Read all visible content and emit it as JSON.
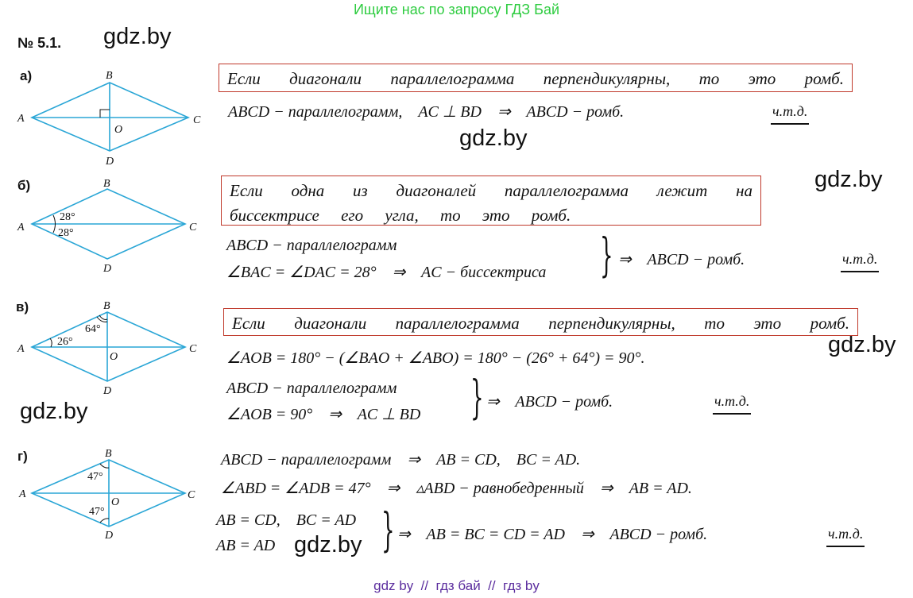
{
  "header": {
    "promo": "Ищите нас по запросу ГДЗ Бай",
    "problem_number": "№ 5.1."
  },
  "watermarks": [
    "gdz.by",
    "gdz.by",
    "gdz.by",
    "gdz.by",
    "gdz.by",
    "gdz.by"
  ],
  "footer": "gdz by  //  гдз бай  //  гдз by",
  "colors": {
    "diagram": "#2aa6d6",
    "box_border": "#c0392b",
    "promo": "#2ecc40",
    "footer": "#5b2d9e"
  },
  "vertices": {
    "A": "A",
    "B": "B",
    "C": "C",
    "D": "D",
    "O": "O"
  },
  "qed": "ч.т.д.",
  "parts": [
    {
      "label": "а)",
      "statement": [
        "Если диагонали параллелограмма перпендикулярны, то это ромб."
      ],
      "lines": [
        "ABCD − параллелограмм,    AC ⊥ BD    ⇒    ABCD − ромб."
      ]
    },
    {
      "label": "б)",
      "angles": [
        "28°",
        "28°"
      ],
      "statement": [
        "Если одна из диагоналей параллелограмма лежит на",
        "биссектрисе его угла, то это ромб."
      ],
      "lines": [
        "ABCD − параллелограмм",
        "∠BAC = ∠DAC = 28°    ⇒    AC − биссектриса"
      ],
      "conclusion": "⇒    ABCD − ромб."
    },
    {
      "label": "в)",
      "angles": [
        "64°",
        "26°"
      ],
      "statement": [
        "Если диагонали параллелограмма перпендикулярны, то это ромб."
      ],
      "lines": [
        "∠AOB = 180° − (∠BAO + ∠ABO) = 180° − (26° + 64°) = 90°.",
        "ABCD − параллелограмм",
        "∠AOB = 90°    ⇒    AC ⊥ BD"
      ],
      "conclusion": "⇒    ABCD − ромб."
    },
    {
      "label": "г)",
      "angles": [
        "47°",
        "47°"
      ],
      "lines": [
        "ABCD − параллелограмм    ⇒    AB = CD,    BC = AD.",
        "∠ABD = ∠ADB = 47°    ⇒    ▵ABD − равнобедренный    ⇒    AB = AD.",
        "AB = CD,    BC = AD",
        "AB = AD"
      ],
      "conclusion": "⇒    AB = BC = CD = AD    ⇒    ABCD − ромб."
    }
  ]
}
